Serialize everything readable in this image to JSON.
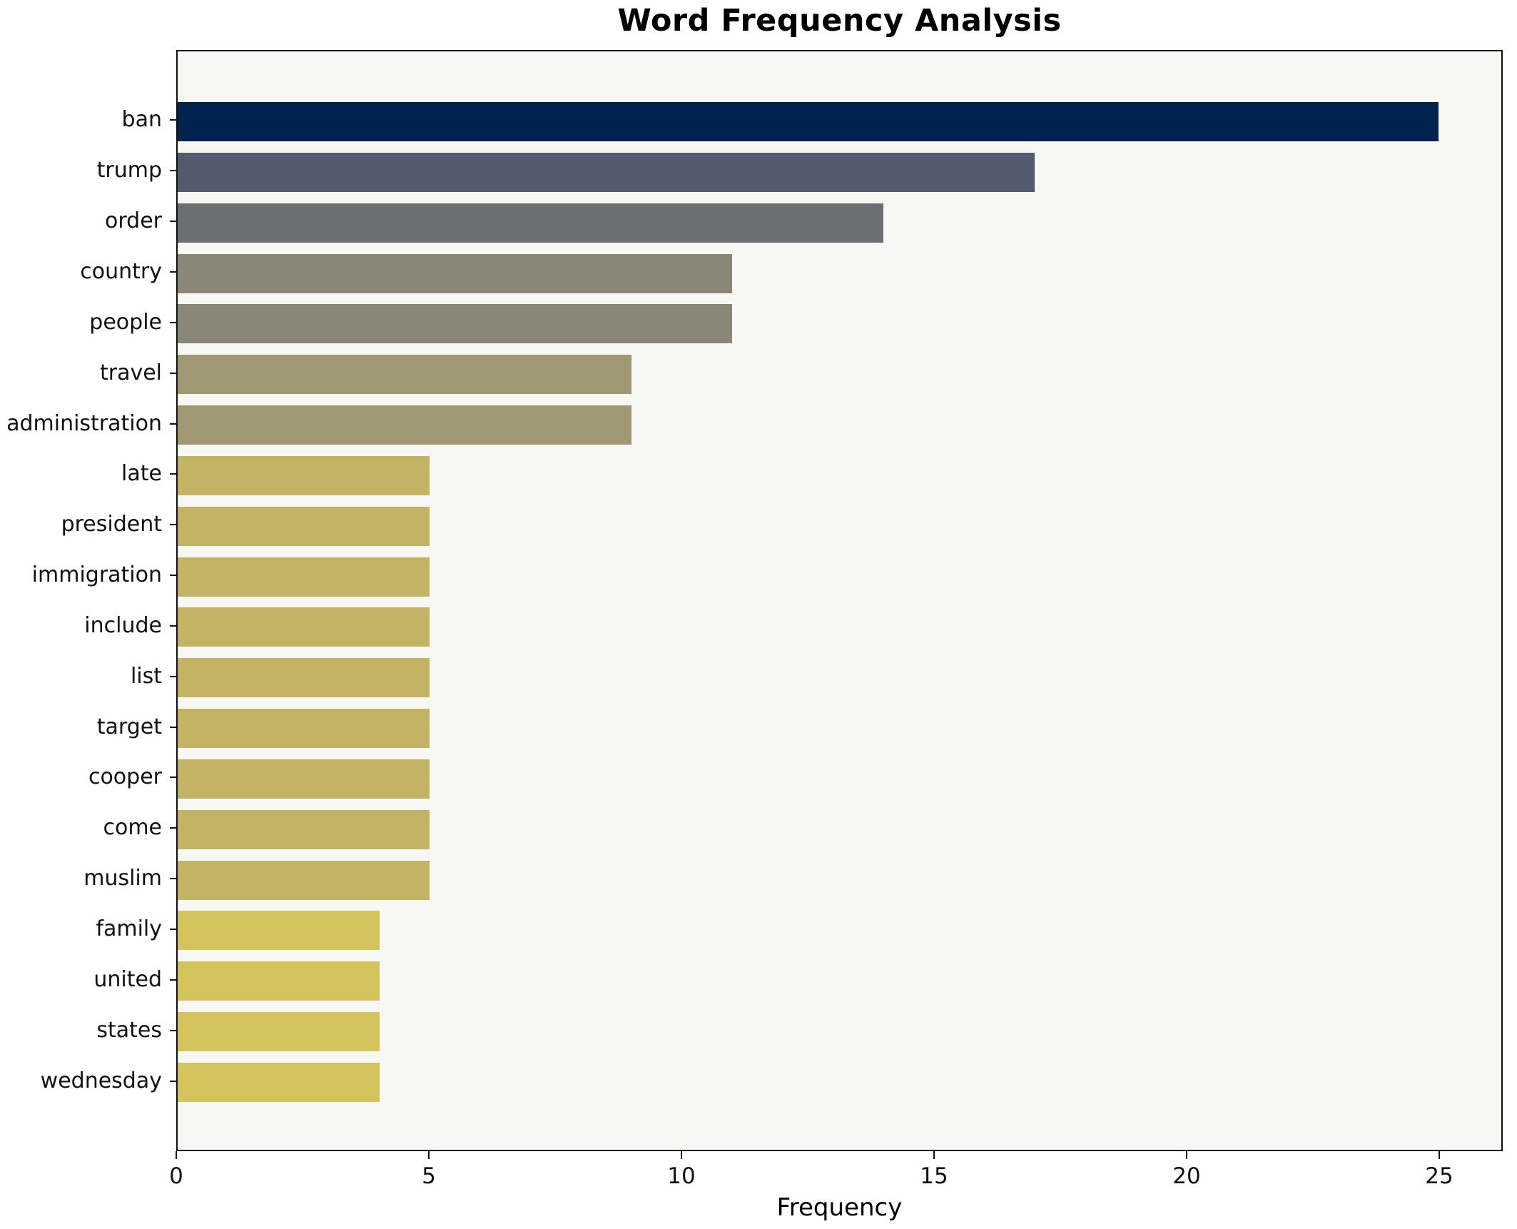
{
  "chart_data": {
    "type": "bar",
    "orientation": "horizontal",
    "title": "Word Frequency Analysis",
    "xlabel": "Frequency",
    "ylabel": "",
    "categories": [
      "ban",
      "trump",
      "order",
      "country",
      "people",
      "travel",
      "administration",
      "late",
      "president",
      "immigration",
      "include",
      "list",
      "target",
      "cooper",
      "come",
      "muslim",
      "family",
      "united",
      "states",
      "wednesday"
    ],
    "values": [
      25,
      17,
      14,
      11,
      11,
      9,
      9,
      5,
      5,
      5,
      5,
      5,
      5,
      5,
      5,
      5,
      4,
      4,
      4,
      4
    ],
    "bar_colors": [
      "#00234d",
      "#545a6e",
      "#6d6e72",
      "#8a8779",
      "#8a8779",
      "#a09873",
      "#a09873",
      "#c3b365",
      "#c3b365",
      "#c3b365",
      "#c3b365",
      "#c3b365",
      "#c3b365",
      "#c3b365",
      "#c3b365",
      "#c3b365",
      "#d4c45e",
      "#d4c45e",
      "#d4c45e",
      "#d4c45e"
    ],
    "xticks": [
      0,
      5,
      10,
      15,
      20,
      25
    ],
    "xlim": [
      0,
      26.25
    ],
    "grid": false,
    "legend": null,
    "plot_background": "#f7f7f4",
    "figure_background": "#ffffff",
    "spine_color": "#111111",
    "colormap": "cividis reversed by frequency"
  }
}
